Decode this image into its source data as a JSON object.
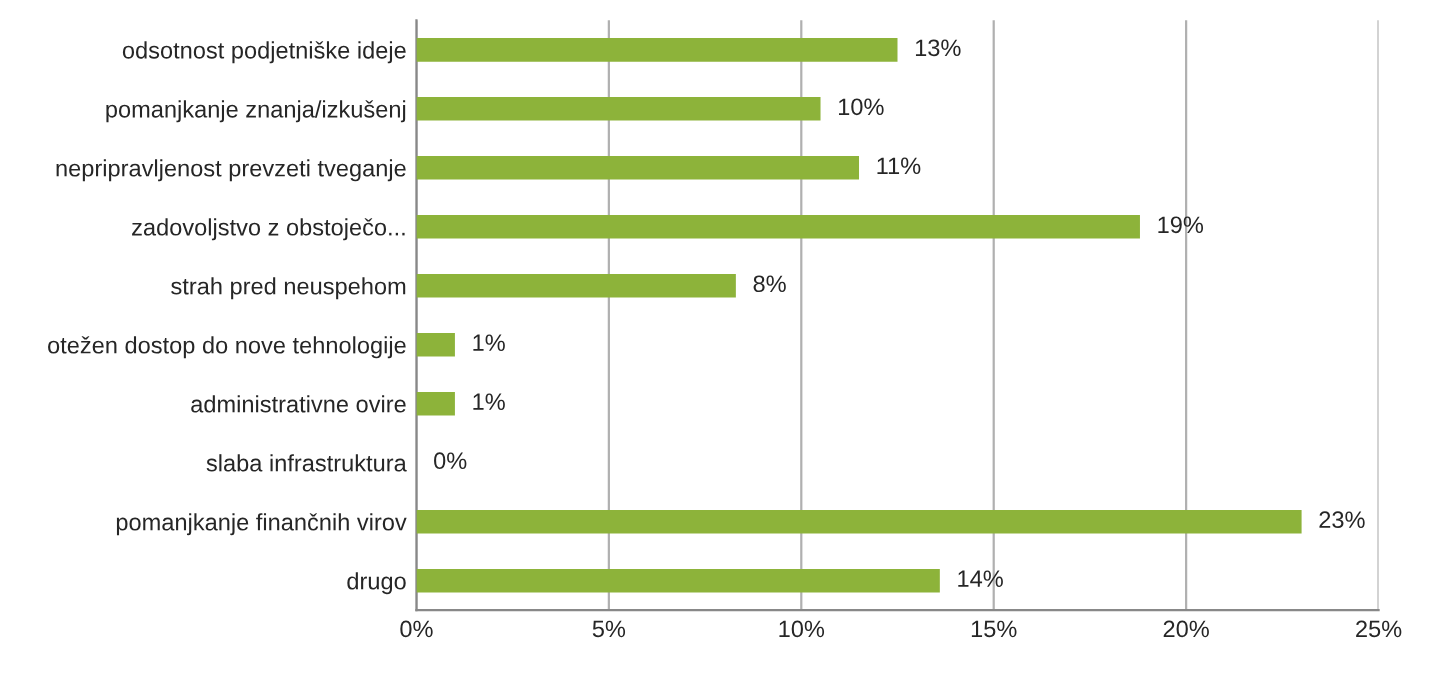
{
  "chart_data": {
    "type": "bar",
    "orientation": "horizontal",
    "categories": [
      "odsotnost podjetniške ideje",
      "pomanjkanje znanja/izkušenj",
      "nepripravljenost prevzeti tveganje",
      "zadovoljstvo z obstoječo...",
      "strah pred neuspehom",
      "otežen dostop do nove tehnologije",
      "administrativne ovire",
      "slaba infrastruktura",
      "pomanjkanje finančnih virov",
      "drugo"
    ],
    "values": [
      12.5,
      10.5,
      11.5,
      18.8,
      8.3,
      1.0,
      1.0,
      0,
      23.0,
      13.6
    ],
    "value_labels": [
      "13%",
      "10%",
      "11%",
      "19%",
      "8%",
      "1%",
      "1%",
      "0%",
      "23%",
      "14%"
    ],
    "color": "#8db33a",
    "xlim": [
      0,
      25
    ],
    "xticks": [
      {
        "value": 0,
        "label": "0%"
      },
      {
        "value": 5,
        "label": "5%"
      },
      {
        "value": 10,
        "label": "10%"
      },
      {
        "value": 15,
        "label": "15%"
      },
      {
        "value": 20,
        "label": "20%"
      },
      {
        "value": 25,
        "label": "25%"
      }
    ],
    "grid": "x"
  }
}
